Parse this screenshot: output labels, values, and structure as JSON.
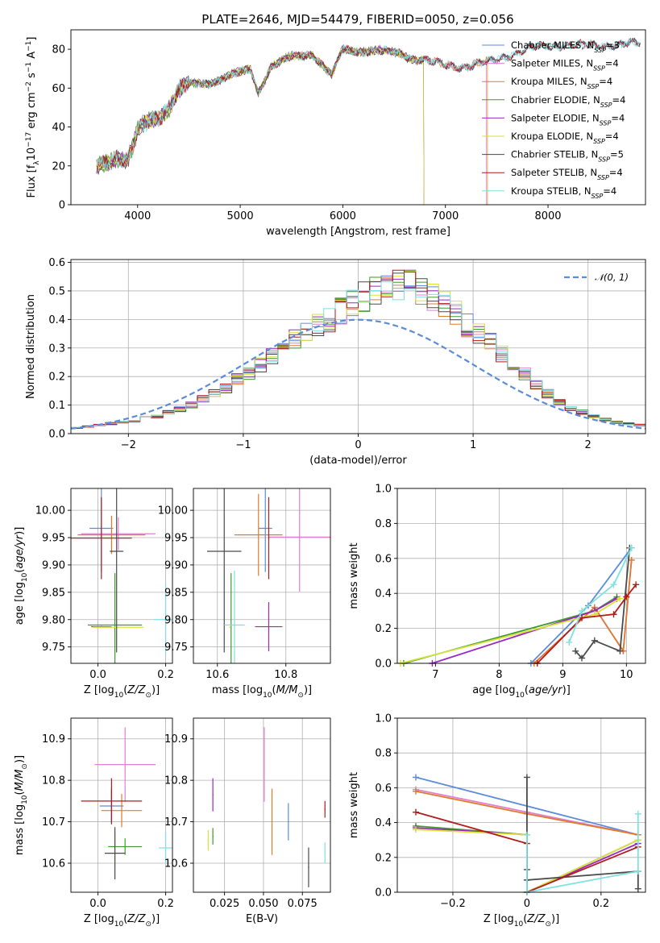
{
  "figure_title": "PLATE=2646, MJD=54479, FIBERID=0050, z=0.056",
  "colors": {
    "Chabrier MILES": "#5b8bd9",
    "Salpeter MILES": "#e07fd0",
    "Kroupa MILES": "#e07b2c",
    "Chabrier ELODIE": "#3f9a2e",
    "Salpeter ELODIE": "#9b29c0",
    "Kroupa ELODIE": "#d9e23a",
    "Chabrier STELIB": "#4a4a4a",
    "Salpeter STELIB": "#b31a1a",
    "Kroupa STELIB": "#7fe0e0"
  },
  "chart_data": [
    {
      "id": "spectrum",
      "type": "line",
      "xlabel": "wavelength [Angstrom, rest frame]",
      "ylabel": "Flux [f_λ10^-17 erg cm^-2 s^-1 A^-1]",
      "xlim": [
        3350,
        8950
      ],
      "ylim": [
        0,
        90
      ],
      "xticks": [
        4000,
        5000,
        6000,
        7000,
        8000
      ],
      "yticks": [
        0,
        20,
        40,
        60,
        80
      ],
      "grid": false,
      "legend_position": "top-right",
      "anchors_x": [
        3600,
        3700,
        3800,
        3900,
        3950,
        4000,
        4100,
        4200,
        4300,
        4400,
        4500,
        4700,
        4900,
        5100,
        5175,
        5300,
        5500,
        5700,
        5890,
        6000,
        6300,
        6563,
        6700,
        7000,
        7200,
        7400,
        7600,
        7700,
        7800,
        8000,
        8200,
        8500,
        8900
      ],
      "anchors_y": [
        20,
        23,
        25,
        22,
        28,
        37,
        43,
        46,
        50,
        58,
        62,
        63,
        66,
        70,
        58,
        71,
        76,
        78,
        66,
        80,
        79,
        78,
        75,
        72,
        71,
        73,
        77,
        78,
        80,
        82,
        82,
        82,
        83
      ],
      "series": [
        {
          "name": "Chabrier MILES",
          "label_main": "Chabrier MILES, N",
          "label_sub": "SSP",
          "label_tail": "=3",
          "xend": 8900
        },
        {
          "name": "Salpeter MILES",
          "label_main": "Salpeter MILES, N",
          "label_sub": "SSP",
          "label_tail": "=4",
          "xend": 7400
        },
        {
          "name": "Kroupa MILES",
          "label_main": "Kroupa MILES, N",
          "label_sub": "SSP",
          "label_tail": "=4",
          "xend": 7410
        },
        {
          "name": "Chabrier ELODIE",
          "label_main": "Chabrier ELODIE, N",
          "label_sub": "SSP",
          "label_tail": "=4",
          "xend": 6790
        },
        {
          "name": "Salpeter ELODIE",
          "label_main": "Salpeter ELODIE, N",
          "label_sub": "SSP",
          "label_tail": "=4",
          "xend": 6790
        },
        {
          "name": "Kroupa ELODIE",
          "label_main": "Kroupa ELODIE, N",
          "label_sub": "SSP",
          "label_tail": "=4",
          "xend": 6790
        },
        {
          "name": "Chabrier STELIB",
          "label_main": "Chabrier STELIB, N",
          "label_sub": "SSP",
          "label_tail": "=5",
          "xend": 8900
        },
        {
          "name": "Salpeter STELIB",
          "label_main": "Salpeter STELIB, N",
          "label_sub": "SSP",
          "label_tail": "=4",
          "xend": 8900
        },
        {
          "name": "Kroupa STELIB",
          "label_main": "Kroupa STELIB, N",
          "label_sub": "SSP",
          "label_tail": "=4",
          "xend": 8900
        }
      ]
    },
    {
      "id": "residuals",
      "type": "line",
      "xlabel": "(data-model)/error",
      "ylabel": "Normed distribution",
      "xlim": [
        -2.5,
        2.5
      ],
      "ylim": [
        0,
        0.61
      ],
      "xticks": [
        -2,
        -1,
        0,
        1,
        2
      ],
      "yticks": [
        0.0,
        0.1,
        0.2,
        0.3,
        0.4,
        0.5,
        0.6
      ],
      "grid": true,
      "legend_position": "top-right",
      "reference_label": "𝒩(0, 1)",
      "bin_width": 0.1,
      "bin_start": -2.5,
      "bin_values": [
        0.02,
        0.025,
        0.03,
        0.035,
        0.04,
        0.045,
        0.055,
        0.06,
        0.075,
        0.085,
        0.1,
        0.12,
        0.14,
        0.16,
        0.19,
        0.21,
        0.24,
        0.27,
        0.3,
        0.33,
        0.36,
        0.38,
        0.4,
        0.43,
        0.46,
        0.48,
        0.5,
        0.5,
        0.52,
        0.52,
        0.5,
        0.48,
        0.45,
        0.42,
        0.38,
        0.35,
        0.32,
        0.28,
        0.24,
        0.21,
        0.17,
        0.14,
        0.11,
        0.09,
        0.075,
        0.06,
        0.05,
        0.04,
        0.035,
        0.03
      ]
    },
    {
      "id": "age_vs_Z",
      "type": "scatter",
      "xlabel": "Z [log10(Z/Z⊙)]",
      "ylabel": "age  [log10(age/yr)]",
      "xlim": [
        -0.08,
        0.22
      ],
      "ylim": [
        9.72,
        10.04
      ],
      "xticks": [
        0.0,
        0.2
      ],
      "yticks": [
        9.75,
        9.8,
        9.85,
        9.9,
        9.95,
        10.0
      ],
      "grid": true,
      "points": [
        {
          "series": "Chabrier MILES",
          "x": 0.01,
          "y": 9.967,
          "xerr": 0.035,
          "yerr": 0.08
        },
        {
          "series": "Salpeter MILES",
          "x": 0.06,
          "y": 9.957,
          "xerr": 0.11,
          "yerr": 0.03
        },
        {
          "series": "Kroupa MILES",
          "x": 0.04,
          "y": 9.955,
          "xerr": 0.1,
          "yerr": 0.035
        },
        {
          "series": "Chabrier ELODIE",
          "x": 0.05,
          "y": 9.79,
          "xerr": 0.08,
          "yerr": 0.095
        },
        {
          "series": "Salpeter ELODIE",
          "x": 0.01,
          "y": 9.787,
          "xerr": 0.03,
          "yerr": 0.0
        },
        {
          "series": "Kroupa ELODIE",
          "x": 0.06,
          "y": 9.786,
          "xerr": 0.075,
          "yerr": 0.0
        },
        {
          "series": "Chabrier STELIB",
          "x": 0.055,
          "y": 9.925,
          "xerr": 0.02,
          "yerr": 0.185
        },
        {
          "series": "Salpeter STELIB",
          "x": 0.01,
          "y": 9.949,
          "xerr": 0.09,
          "yerr": 0.075
        },
        {
          "series": "Kroupa STELIB",
          "x": 0.2,
          "y": 9.8,
          "xerr": 0.035,
          "yerr": 0.065
        }
      ]
    },
    {
      "id": "age_vs_mass",
      "type": "scatter",
      "xlabel": "mass [log10(M/M⊙)]",
      "ylabel": "",
      "xlim": [
        10.53,
        10.93
      ],
      "ylim": [
        9.72,
        10.04
      ],
      "xticks": [
        10.6,
        10.8
      ],
      "yticks": [
        9.75,
        9.8,
        9.85,
        9.9,
        9.95,
        10.0
      ],
      "grid": true,
      "points": [
        {
          "series": "Chabrier MILES",
          "x": 10.74,
          "y": 9.967,
          "xerr": 0.02,
          "yerr": 0.08
        },
        {
          "series": "Salpeter MILES",
          "x": 10.84,
          "y": 9.951,
          "xerr": 0.09,
          "yerr": 0.1
        },
        {
          "series": "Kroupa MILES",
          "x": 10.72,
          "y": 9.955,
          "xerr": 0.07,
          "yerr": 0.075
        },
        {
          "series": "Chabrier ELODIE",
          "x": 10.64,
          "y": 9.79,
          "xerr": 0.0,
          "yerr": 0.095
        },
        {
          "series": "Salpeter ELODIE",
          "x": 10.75,
          "y": 9.787,
          "xerr": 0.04,
          "yerr": 0.045
        },
        {
          "series": "Kroupa ELODIE",
          "x": 10.635,
          "y": 9.786,
          "xerr": 0.0,
          "yerr": 0.0
        },
        {
          "series": "Chabrier STELIB",
          "x": 10.62,
          "y": 9.925,
          "xerr": 0.05,
          "yerr": 0.185
        },
        {
          "series": "Salpeter STELIB",
          "x": 10.75,
          "y": 9.949,
          "xerr": 0.0,
          "yerr": 0.075
        },
        {
          "series": "Kroupa STELIB",
          "x": 10.65,
          "y": 9.79,
          "xerr": 0.03,
          "yerr": 0.1
        }
      ]
    },
    {
      "id": "mass_weight_vs_age",
      "type": "line",
      "xlabel": "age  [log10(age/yr)]",
      "ylabel": "mass weight",
      "xlim": [
        6.4,
        10.3
      ],
      "ylim": [
        0,
        1.0
      ],
      "xticks": [
        7,
        8,
        9,
        10
      ],
      "yticks": [
        0.0,
        0.2,
        0.4,
        0.6,
        0.8,
        1.0
      ],
      "grid": true,
      "series": [
        {
          "name": "Chabrier MILES",
          "x": [
            8.5,
            9.4,
            10.08
          ],
          "y": [
            0.0,
            0.33,
            0.66
          ]
        },
        {
          "name": "Salpeter MILES",
          "x": [
            8.55,
            9.5,
            9.95,
            10.08
          ],
          "y": [
            0.0,
            0.32,
            0.07,
            0.59
          ]
        },
        {
          "name": "Kroupa MILES",
          "x": [
            8.55,
            9.5,
            9.95,
            10.08
          ],
          "y": [
            0.0,
            0.32,
            0.07,
            0.59
          ]
        },
        {
          "name": "Chabrier ELODIE",
          "x": [
            6.5,
            9.5,
            9.85
          ],
          "y": [
            0.0,
            0.3,
            0.38
          ]
        },
        {
          "name": "Salpeter ELODIE",
          "x": [
            6.95,
            9.5,
            9.85
          ],
          "y": [
            0.0,
            0.3,
            0.37
          ]
        },
        {
          "name": "Kroupa ELODIE",
          "x": [
            6.45,
            9.5,
            9.9
          ],
          "y": [
            0.0,
            0.28,
            0.37
          ]
        },
        {
          "name": "Chabrier STELIB",
          "x": [
            9.2,
            9.3,
            9.5,
            9.9,
            10.05
          ],
          "y": [
            0.07,
            0.03,
            0.13,
            0.07,
            0.66
          ]
        },
        {
          "name": "Salpeter STELIB",
          "x": [
            8.6,
            9.3,
            9.8,
            10.0,
            10.15
          ],
          "y": [
            0.0,
            0.26,
            0.28,
            0.38,
            0.45
          ]
        },
        {
          "name": "Kroupa STELIB",
          "x": [
            9.1,
            9.3,
            9.8,
            10.08
          ],
          "y": [
            0.12,
            0.3,
            0.45,
            0.66
          ]
        }
      ]
    },
    {
      "id": "mass_vs_Z",
      "type": "scatter",
      "xlabel": "Z [log10(Z/Z⊙)]",
      "ylabel": "mass [log10(M/M⊙)]",
      "xlim": [
        -0.08,
        0.22
      ],
      "ylim": [
        10.53,
        10.95
      ],
      "xticks": [
        0.0,
        0.2
      ],
      "yticks": [
        10.6,
        10.7,
        10.8,
        10.9
      ],
      "grid": true,
      "points": [
        {
          "series": "Chabrier MILES",
          "x": 0.04,
          "y": 10.738,
          "xerr": 0.035,
          "yerr": 0.045
        },
        {
          "series": "Salpeter MILES",
          "x": 0.08,
          "y": 10.838,
          "xerr": 0.09,
          "yerr": 0.09
        },
        {
          "series": "Kroupa MILES",
          "x": 0.07,
          "y": 10.727,
          "xerr": 0.06,
          "yerr": 0.04
        },
        {
          "series": "Chabrier ELODIE",
          "x": 0.08,
          "y": 10.64,
          "xerr": 0.05,
          "yerr": 0.02
        },
        {
          "series": "Salpeter ELODIE",
          "x": 0.04,
          "y": 10.74,
          "xerr": 0.0,
          "yerr": 0.04
        },
        {
          "series": "Kroupa ELODIE",
          "x": 0.05,
          "y": 10.635,
          "xerr": 0.0,
          "yerr": 0.04
        },
        {
          "series": "Chabrier STELIB",
          "x": 0.05,
          "y": 10.624,
          "xerr": 0.03,
          "yerr": 0.063
        },
        {
          "series": "Salpeter STELIB",
          "x": 0.04,
          "y": 10.75,
          "xerr": 0.09,
          "yerr": 0.055
        },
        {
          "series": "Kroupa STELIB",
          "x": 0.2,
          "y": 10.637,
          "xerr": 0.02,
          "yerr": 0.04
        }
      ]
    },
    {
      "id": "mass_vs_EBV",
      "type": "scatter",
      "xlabel": "E(B-V)",
      "ylabel": "",
      "xlim": [
        0.005,
        0.093
      ],
      "ylim": [
        10.53,
        10.95
      ],
      "xticks": [
        0.025,
        0.05,
        0.075
      ],
      "xtick_labels": [
        "0.025",
        "0.050",
        "0.075"
      ],
      "yticks": [
        10.6,
        10.7,
        10.8,
        10.9
      ],
      "grid": true,
      "points": [
        {
          "series": "Chabrier MILES",
          "x": 0.066,
          "y": 10.7,
          "xerr": 0.0,
          "yerr": 0.045
        },
        {
          "series": "Salpeter MILES",
          "x": 0.0505,
          "y": 10.838,
          "xerr": 0.0,
          "yerr": 0.09
        },
        {
          "series": "Kroupa MILES",
          "x": 0.0555,
          "y": 10.7,
          "xerr": 0.0,
          "yerr": 0.08
        },
        {
          "series": "Chabrier ELODIE",
          "x": 0.0175,
          "y": 10.665,
          "xerr": 0.0,
          "yerr": 0.02
        },
        {
          "series": "Salpeter ELODIE",
          "x": 0.0175,
          "y": 10.765,
          "xerr": 0.0,
          "yerr": 0.04
        },
        {
          "series": "Kroupa ELODIE",
          "x": 0.0145,
          "y": 10.655,
          "xerr": 0.0,
          "yerr": 0.025
        },
        {
          "series": "Chabrier STELIB",
          "x": 0.079,
          "y": 10.59,
          "xerr": 0.0,
          "yerr": 0.048
        },
        {
          "series": "Salpeter STELIB",
          "x": 0.0895,
          "y": 10.73,
          "xerr": 0.0,
          "yerr": 0.02
        },
        {
          "series": "Kroupa STELIB",
          "x": 0.0895,
          "y": 10.625,
          "xerr": 0.0,
          "yerr": 0.025
        }
      ]
    },
    {
      "id": "mass_weight_vs_Z",
      "type": "line",
      "xlabel": "Z [log10(Z/Z⊙)]",
      "ylabel": "mass weight",
      "xlim": [
        -0.35,
        0.32
      ],
      "ylim": [
        0,
        1.0
      ],
      "xticks": [
        -0.2,
        0.0,
        0.2
      ],
      "yticks": [
        0.0,
        0.2,
        0.4,
        0.6,
        0.8,
        1.0
      ],
      "grid": true,
      "series": [
        {
          "name": "Chabrier MILES",
          "x": [
            -0.3,
            0.3
          ],
          "y": [
            0.66,
            0.33
          ]
        },
        {
          "name": "Salpeter MILES",
          "x": [
            -0.3,
            0.0,
            0.3
          ],
          "y": [
            0.59,
            0.46,
            0.33
          ]
        },
        {
          "name": "Kroupa MILES",
          "x": [
            -0.3,
            0.0,
            0.3
          ],
          "y": [
            0.58,
            0.45,
            0.33
          ]
        },
        {
          "name": "Chabrier ELODIE",
          "x": [
            -0.3,
            0.0,
            0.0,
            0.3
          ],
          "y": [
            0.38,
            0.33,
            0.0,
            0.3
          ]
        },
        {
          "name": "Salpeter ELODIE",
          "x": [
            -0.3,
            0.0,
            0.0,
            0.3
          ],
          "y": [
            0.37,
            0.33,
            0.0,
            0.28
          ]
        },
        {
          "name": "Kroupa ELODIE",
          "x": [
            -0.3,
            0.0,
            0.0,
            0.3
          ],
          "y": [
            0.36,
            0.33,
            0.0,
            0.3
          ]
        },
        {
          "name": "Chabrier STELIB",
          "x": [
            0.0,
            0.0,
            0.0,
            0.3,
            0.3
          ],
          "y": [
            0.66,
            0.13,
            0.07,
            0.12,
            0.02
          ]
        },
        {
          "name": "Salpeter STELIB",
          "x": [
            -0.3,
            0.0,
            0.0,
            0.3
          ],
          "y": [
            0.46,
            0.28,
            0.0,
            0.26
          ]
        },
        {
          "name": "Kroupa STELIB",
          "x": [
            0.0,
            0.0,
            0.3,
            0.3
          ],
          "y": [
            0.33,
            0.0,
            0.12,
            0.45
          ]
        }
      ]
    }
  ]
}
